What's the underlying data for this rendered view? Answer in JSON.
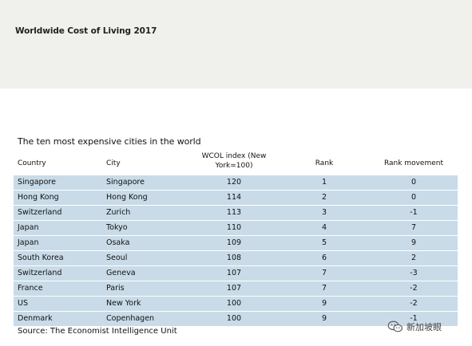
{
  "header": {
    "title": "Worldwide Cost of Living 2017"
  },
  "table": {
    "title": "The ten most expensive cities in the world",
    "columns": {
      "country": "Country",
      "city": "City",
      "wcol": "WCOL index (New York=100)",
      "rank": "Rank",
      "movement": "Rank movement"
    },
    "rows": [
      {
        "country": "Singapore",
        "city": "Singapore",
        "wcol": "120",
        "rank": "1",
        "movement": "0"
      },
      {
        "country": "Hong Kong",
        "city": "Hong Kong",
        "wcol": "114",
        "rank": "2",
        "movement": "0"
      },
      {
        "country": "Switzerland",
        "city": "Zurich",
        "wcol": "113",
        "rank": "3",
        "movement": "-1"
      },
      {
        "country": "Japan",
        "city": "Tokyo",
        "wcol": "110",
        "rank": "4",
        "movement": "7"
      },
      {
        "country": "Japan",
        "city": "Osaka",
        "wcol": "109",
        "rank": "5",
        "movement": "9"
      },
      {
        "country": "South Korea",
        "city": "Seoul",
        "wcol": "108",
        "rank": "6",
        "movement": "2"
      },
      {
        "country": "Switzerland",
        "city": "Geneva",
        "wcol": "107",
        "rank": "7",
        "movement": "-3"
      },
      {
        "country": "France",
        "city": "Paris",
        "wcol": "107",
        "rank": "7",
        "movement": "-2"
      },
      {
        "country": "US",
        "city": "New York",
        "wcol": "100",
        "rank": "9",
        "movement": "-2"
      },
      {
        "country": "Denmark",
        "city": "Copenhagen",
        "wcol": "100",
        "rank": "9",
        "movement": "-1"
      }
    ],
    "source": "Source: The Economist Intelligence Unit"
  },
  "watermark": {
    "icon": "wechat-icon",
    "text": "新加坡眼"
  },
  "colors": {
    "header_band": "#f0f0ec",
    "row_fill": "#c9dbe8"
  }
}
